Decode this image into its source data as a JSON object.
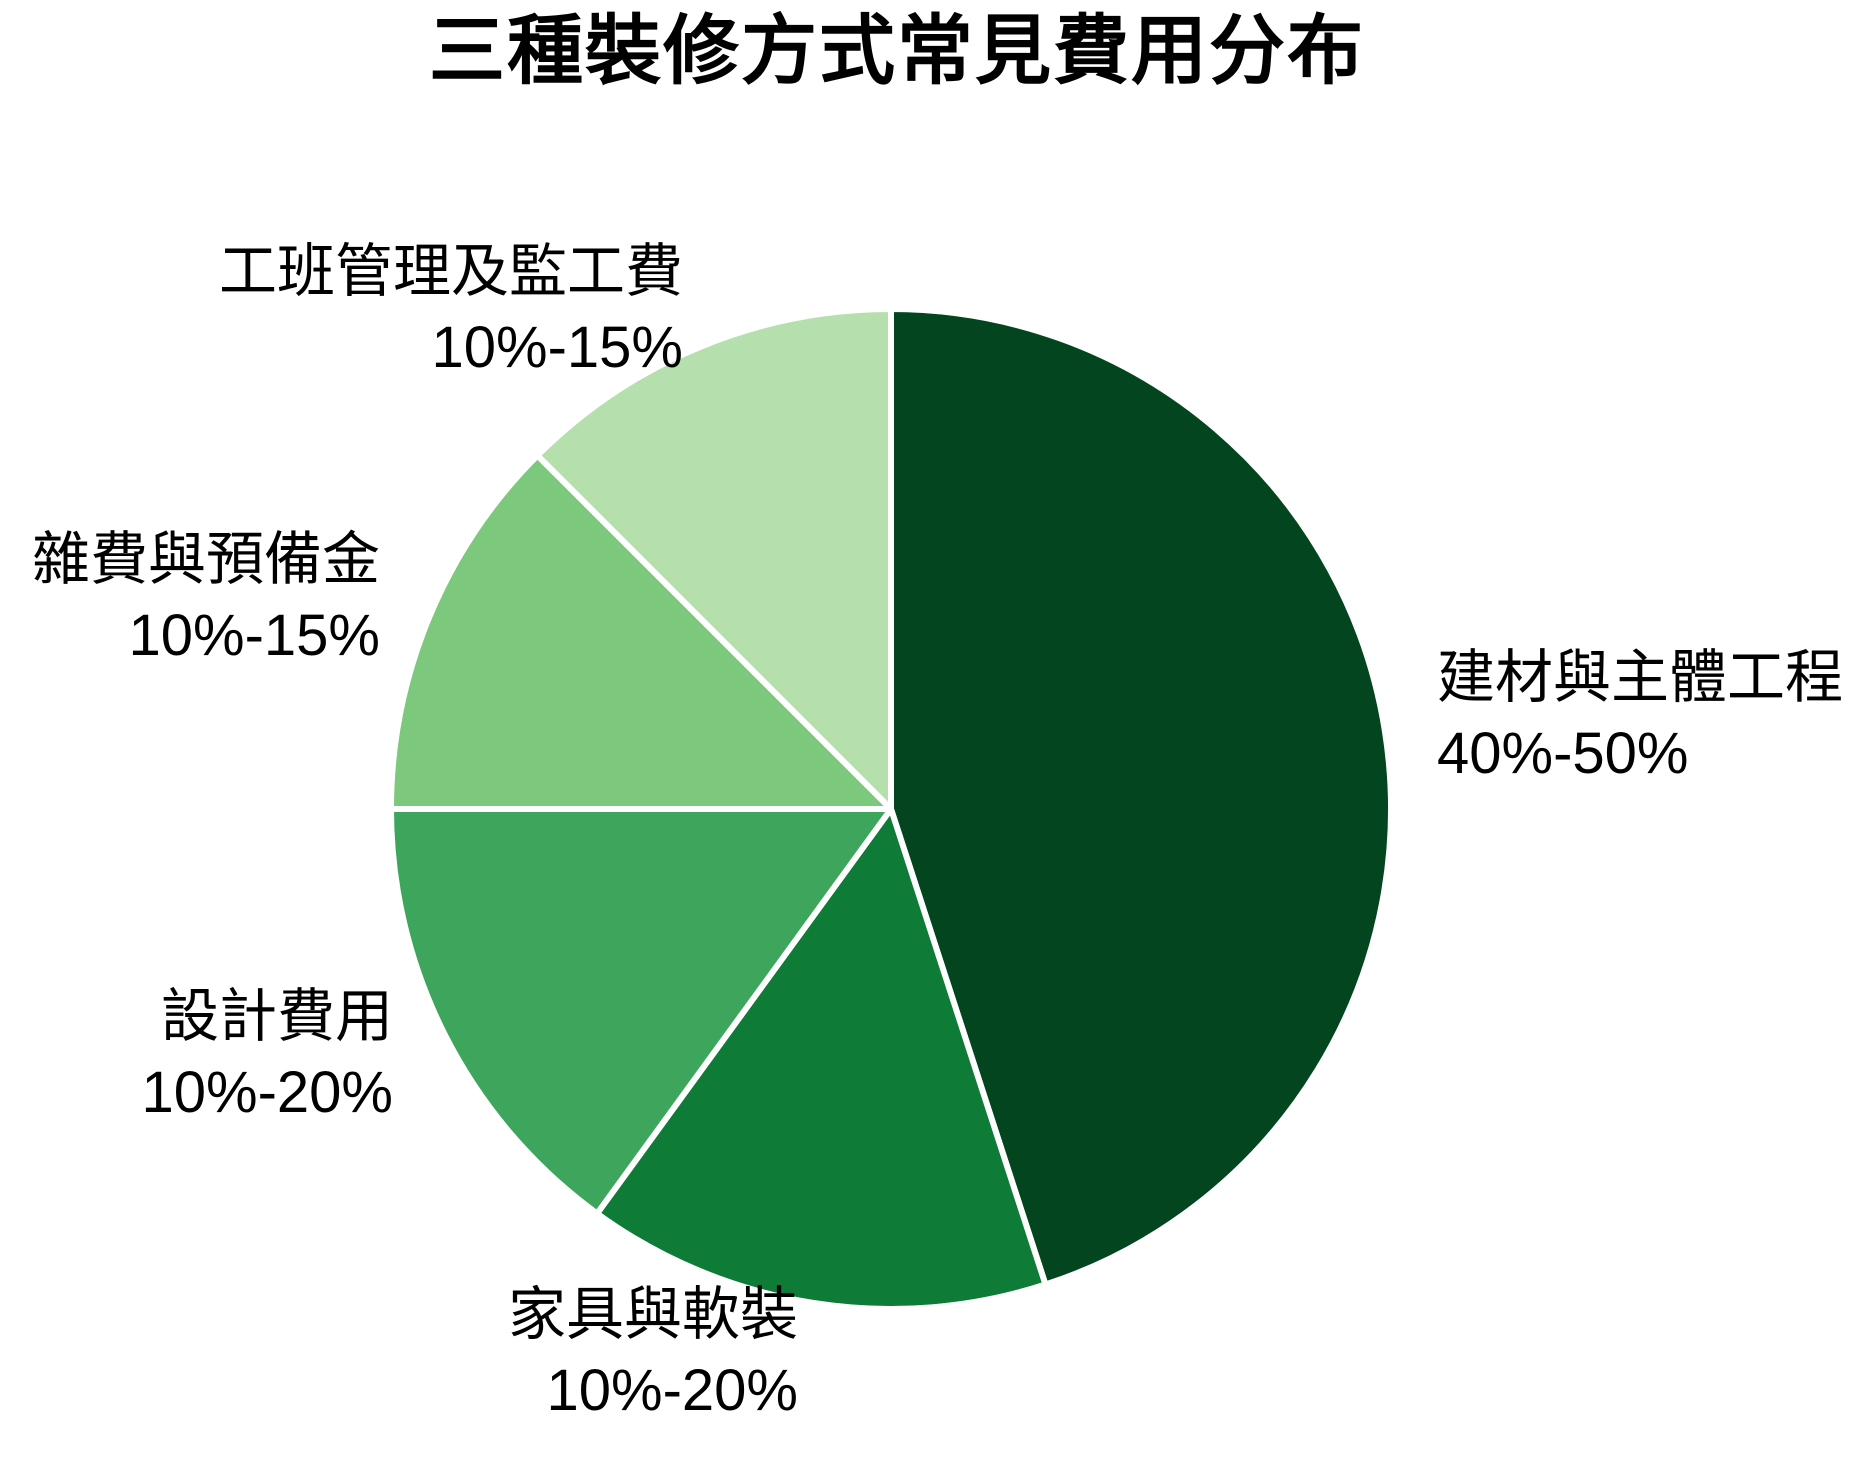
{
  "title": "三種裝修方式常見費用分布",
  "chart_data": {
    "type": "pie",
    "title": "三種裝修方式常見費用分布",
    "start_angle_deg": 90,
    "direction": "clockwise",
    "legend": "none",
    "labels_position": "outside",
    "slice_border_color": "#ffffff",
    "background_color": "#ffffff",
    "text_color": "#000000",
    "series": [
      {
        "label": "建材與主體工程",
        "range_label": "40%-50%",
        "value": 45,
        "color": "#03451f"
      },
      {
        "label": "家具與軟裝",
        "range_label": "10%-20%",
        "value": 15,
        "color": "#0e7b37"
      },
      {
        "label": "設計費用",
        "range_label": "10%-20%",
        "value": 15,
        "color": "#3da55c"
      },
      {
        "label": "雜費與預備金",
        "range_label": "10%-15%",
        "value": 12.5,
        "color": "#7cc87d"
      },
      {
        "label": "工班管理及監工費",
        "range_label": "10%-15%",
        "value": 12.5,
        "color": "#b5e0ad"
      }
    ]
  }
}
